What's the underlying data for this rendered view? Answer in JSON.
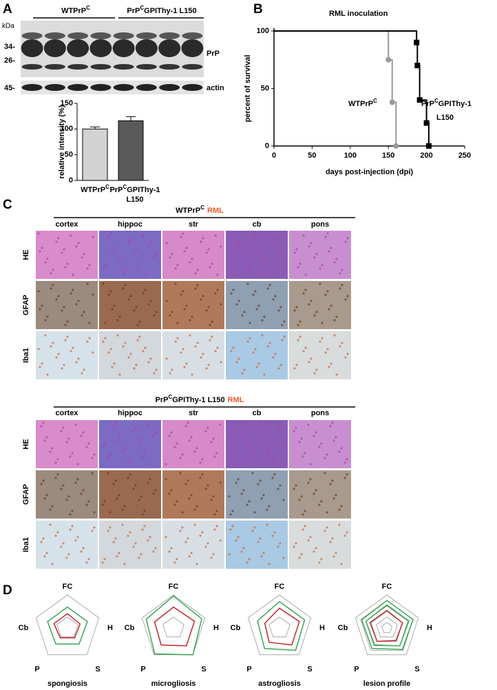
{
  "panel_a": {
    "label": "A",
    "kda": "kDa",
    "groups": [
      {
        "text": "WTPrP",
        "sup": "C"
      },
      {
        "text": "PrP",
        "sup": "C",
        "after": "GPIThy-1 L150"
      }
    ],
    "markers": [
      "34-",
      "26-",
      "45-"
    ],
    "blot_labels": [
      "PrP",
      "actin"
    ]
  },
  "panel_b": {
    "label": "B",
    "series_labels": [
      {
        "text": "WTPrP",
        "sup": "C"
      },
      {
        "text": "PrP",
        "sup": "C",
        "after": "GPIThy-1",
        "line2": "L150"
      }
    ]
  },
  "panel_c": {
    "label": "C",
    "blocks": [
      {
        "title": {
          "text": "WTPrP",
          "sup": "C",
          "rml": "RML"
        },
        "columns": [
          "cortex",
          "hippoc",
          "str",
          "cb",
          "pons"
        ],
        "rows": [
          "HE",
          "GFAP",
          "Iba1"
        ]
      },
      {
        "title": {
          "text": "PrP",
          "sup": "C",
          "after": "GPIThy-1 L150",
          "rml": "RML"
        },
        "columns": [
          "cortex",
          "hippoc",
          "str",
          "cb",
          "pons"
        ],
        "rows": [
          "HE",
          "GFAP",
          "Iba1"
        ]
      }
    ]
  },
  "panel_d": {
    "label": "D"
  },
  "chart_data": [
    {
      "type": "bar",
      "ylabel": "relative intensity (%)",
      "categories": [
        {
          "text": "WTPrP",
          "sup": "C"
        },
        {
          "text": "PrP",
          "sup": "C",
          "after": "GPIThy-1",
          "line2": "L150"
        }
      ],
      "values": [
        100,
        116
      ],
      "errors": [
        4,
        8
      ],
      "colors": [
        "#d3d3d3",
        "#5a5a5a"
      ],
      "ylim": [
        0,
        150
      ],
      "yticks": [
        0,
        50,
        100,
        150
      ]
    },
    {
      "type": "line",
      "step": true,
      "title": "RML inoculation",
      "title_color": "#f05a28",
      "xlabel": "days post-injection (dpi)",
      "ylabel": "percent of survival",
      "xlim": [
        0,
        250
      ],
      "xticks": [
        0,
        50,
        100,
        150,
        200,
        250
      ],
      "ylim": [
        0,
        100
      ],
      "yticks": [
        0,
        50,
        100
      ],
      "series": [
        {
          "color": "#999999",
          "marker": "circle",
          "x": [
            0,
            150,
            155,
            160
          ],
          "values": [
            100,
            75,
            38,
            0
          ]
        },
        {
          "color": "#000000",
          "marker": "square",
          "x": [
            0,
            187,
            188,
            191,
            200,
            203
          ],
          "values": [
            100,
            90,
            70,
            40,
            20,
            0
          ]
        }
      ]
    },
    {
      "type": "radar",
      "title": "spongiosis",
      "axes": [
        "FC",
        "H",
        "S",
        "P",
        "Cb"
      ],
      "rlim": [
        0,
        3
      ],
      "rticks": [
        1,
        3
      ],
      "series": [
        {
          "color": "#3aa655",
          "values": [
            1.9,
            1.9,
            1.8,
            1.8,
            1.9
          ]
        },
        {
          "color": "#c0272d",
          "values": [
            1.3,
            1.2,
            1.1,
            1.1,
            1.3
          ]
        }
      ]
    },
    {
      "type": "radar",
      "title": "microgliosis",
      "axes": [
        "FC",
        "H",
        "S",
        "P",
        "Cb"
      ],
      "rlim": [
        0,
        3
      ],
      "rticks": [
        1,
        3
      ],
      "series": [
        {
          "color": "#3aa655",
          "values": [
            2.9,
            2.7,
            3.0,
            2.9,
            2.6
          ]
        },
        {
          "color": "#c0272d",
          "values": [
            1.9,
            2.0,
            2.0,
            1.9,
            1.8
          ]
        }
      ]
    },
    {
      "type": "radar",
      "title": "astrogliosis",
      "axes": [
        "FC",
        "H",
        "S",
        "P",
        "Cb"
      ],
      "rlim": [
        0,
        3
      ],
      "rticks": [
        1,
        3
      ],
      "series": [
        {
          "color": "#3aa655",
          "values": [
            2.4,
            2.4,
            2.5,
            2.3,
            2.1
          ]
        },
        {
          "color": "#c0272d",
          "values": [
            1.8,
            1.9,
            1.9,
            1.6,
            1.4
          ]
        }
      ]
    },
    {
      "type": "radar",
      "title": "lesion profile",
      "axes": [
        "FC",
        "H",
        "S",
        "P",
        "Cb"
      ],
      "rlim": [
        0,
        3
      ],
      "rticks": [
        0.5,
        1,
        1.5,
        2,
        2.5,
        3
      ],
      "series": [
        {
          "color": "#3aa655",
          "values": [
            2.5,
            2.5,
            2.4,
            2.3,
            2.4
          ]
        },
        {
          "color": "#3aa655",
          "values": [
            2.1,
            2.1,
            2.0,
            1.9,
            2.0
          ]
        },
        {
          "color": "#c0272d",
          "values": [
            1.6,
            1.5,
            1.4,
            1.5,
            1.6
          ]
        }
      ]
    }
  ]
}
